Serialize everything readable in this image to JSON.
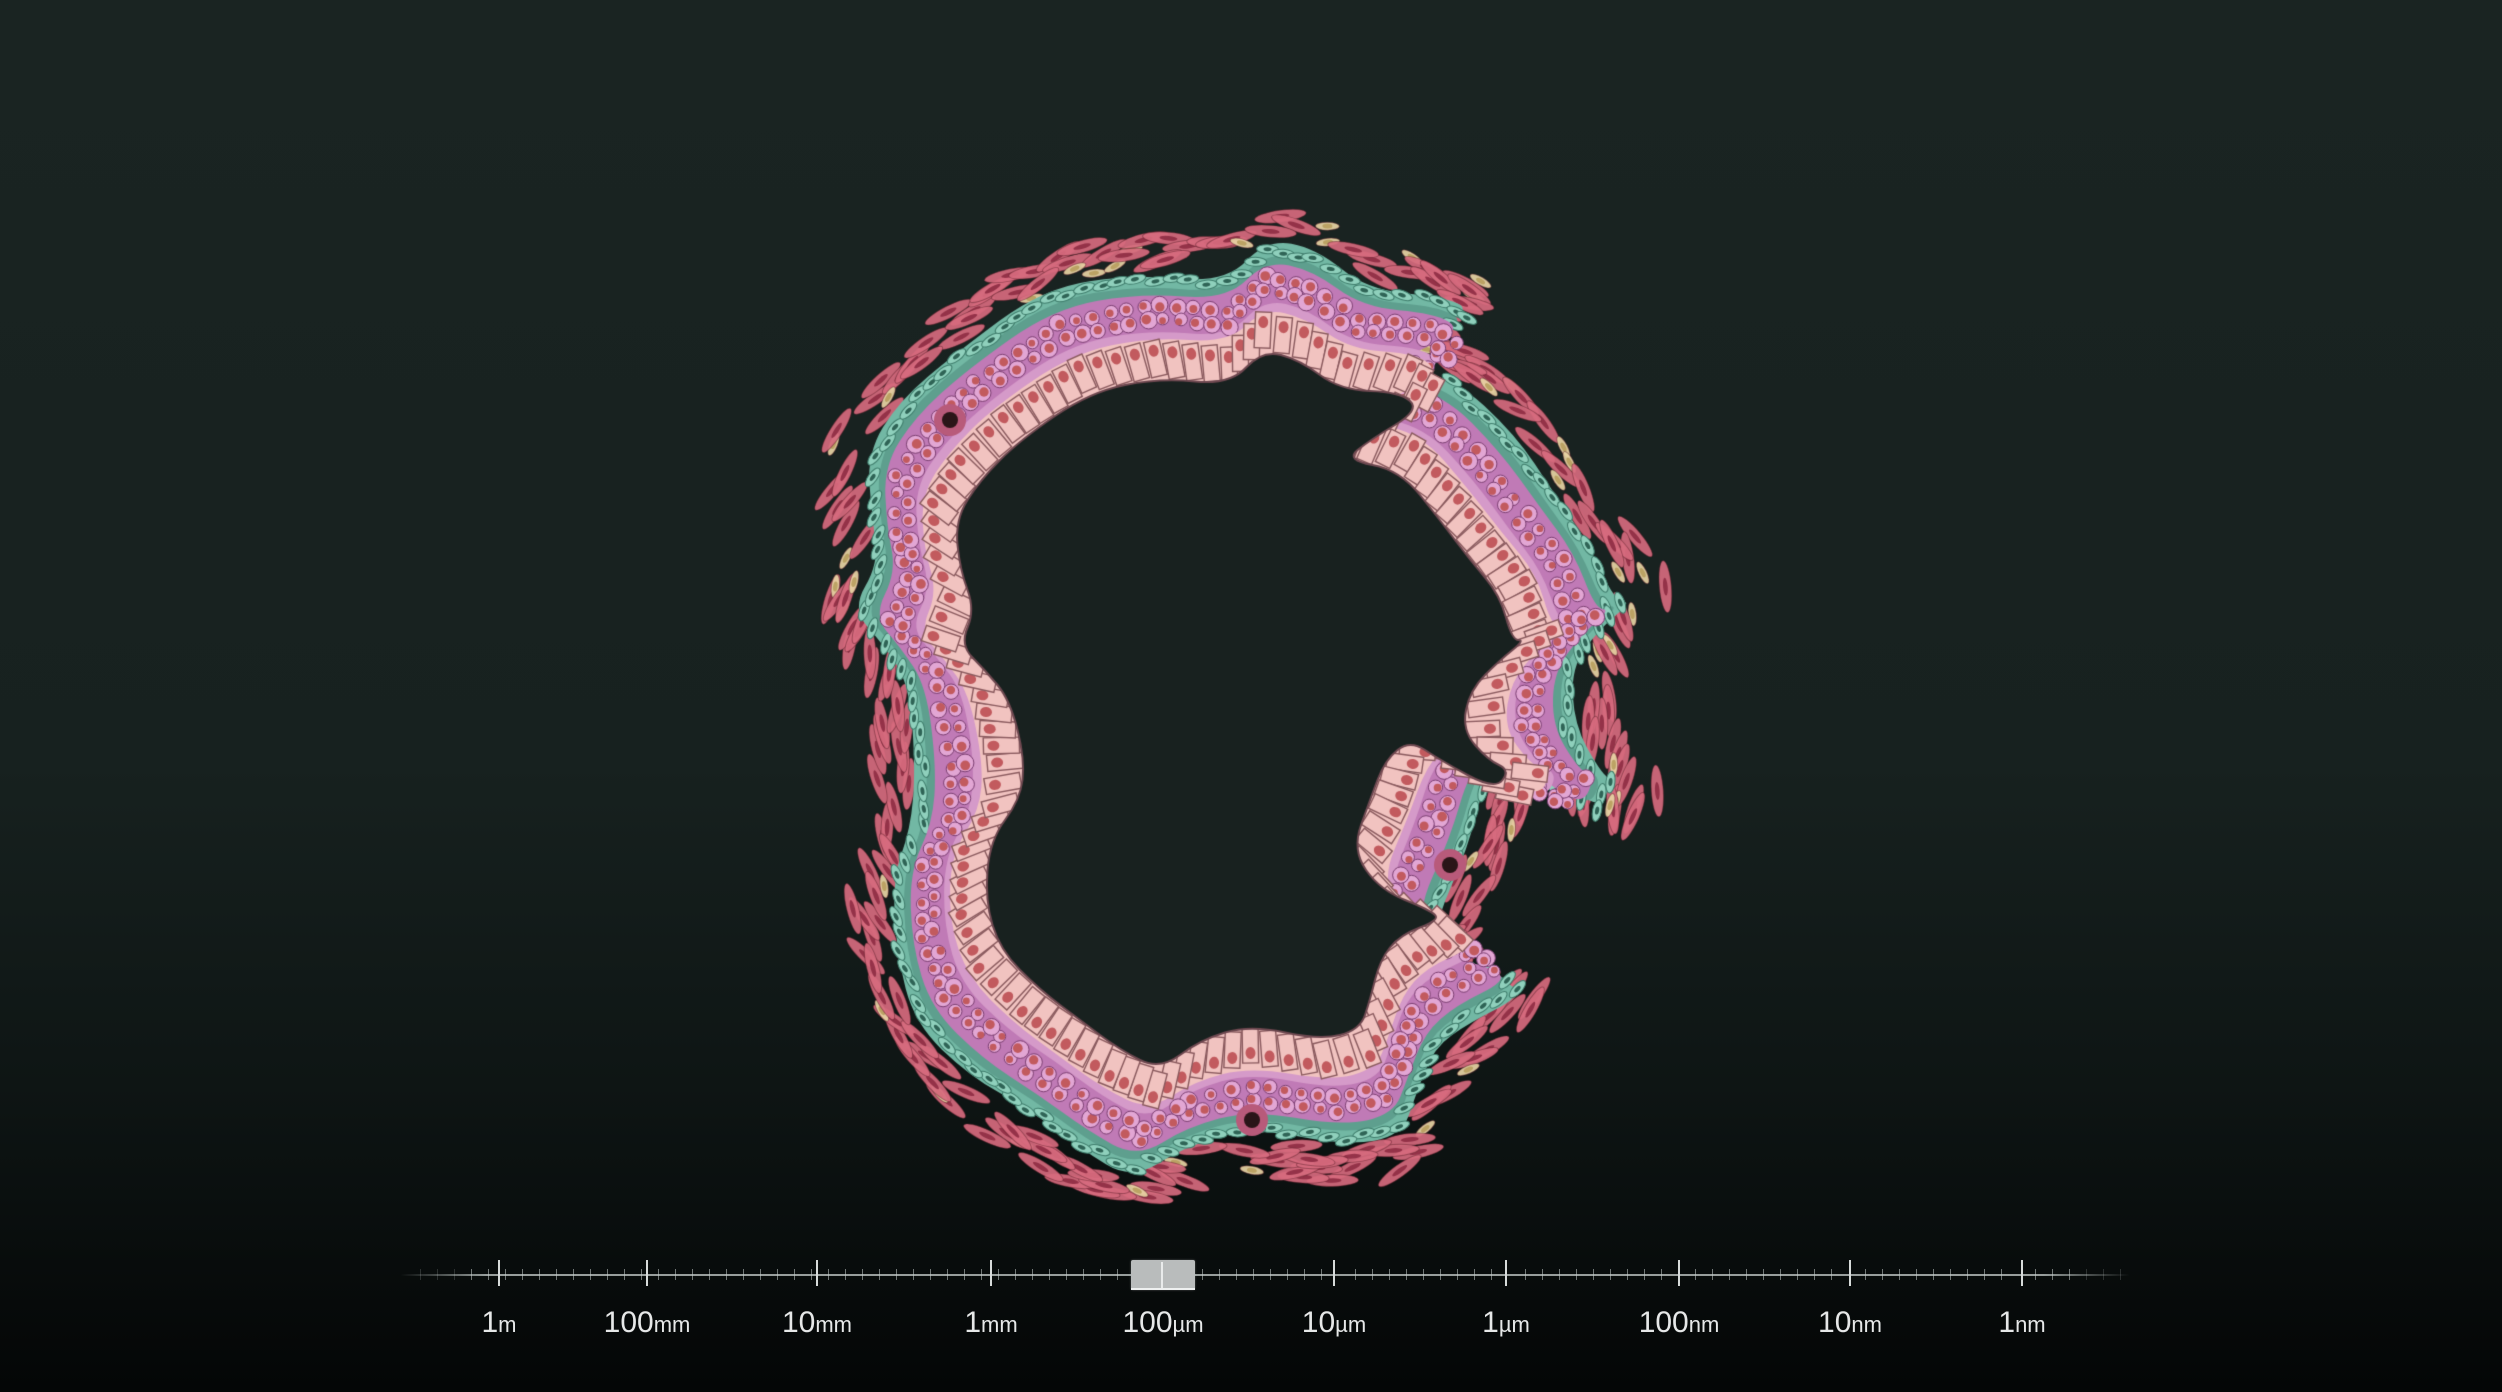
{
  "scene": {
    "subject": "tissue-cross-section",
    "colors": {
      "background_top": "#1a2422",
      "background_bottom": "#040606",
      "lumen": "#18211f",
      "epithelial_cell": "#f1c3c0",
      "epithelial_outline": "#8a5a5e",
      "nucleus": "#c25a5e",
      "basal_layer": "#c07ab6",
      "connective_tissue": "#72b8a4",
      "smooth_muscle": "#d66a7e",
      "fibroblast": "#e7d4a4"
    }
  },
  "scale_bar": {
    "labels": [
      {
        "num": "1",
        "unit": "m"
      },
      {
        "num": "100",
        "unit": "mm"
      },
      {
        "num": "10",
        "unit": "mm"
      },
      {
        "num": "1",
        "unit": "mm"
      },
      {
        "num": "100",
        "unit": "µm"
      },
      {
        "num": "10",
        "unit": "µm"
      },
      {
        "num": "1",
        "unit": "µm"
      },
      {
        "num": "100",
        "unit": "nm"
      },
      {
        "num": "10",
        "unit": "nm"
      },
      {
        "num": "1",
        "unit": "nm"
      }
    ],
    "current_scale": "100 µm"
  }
}
